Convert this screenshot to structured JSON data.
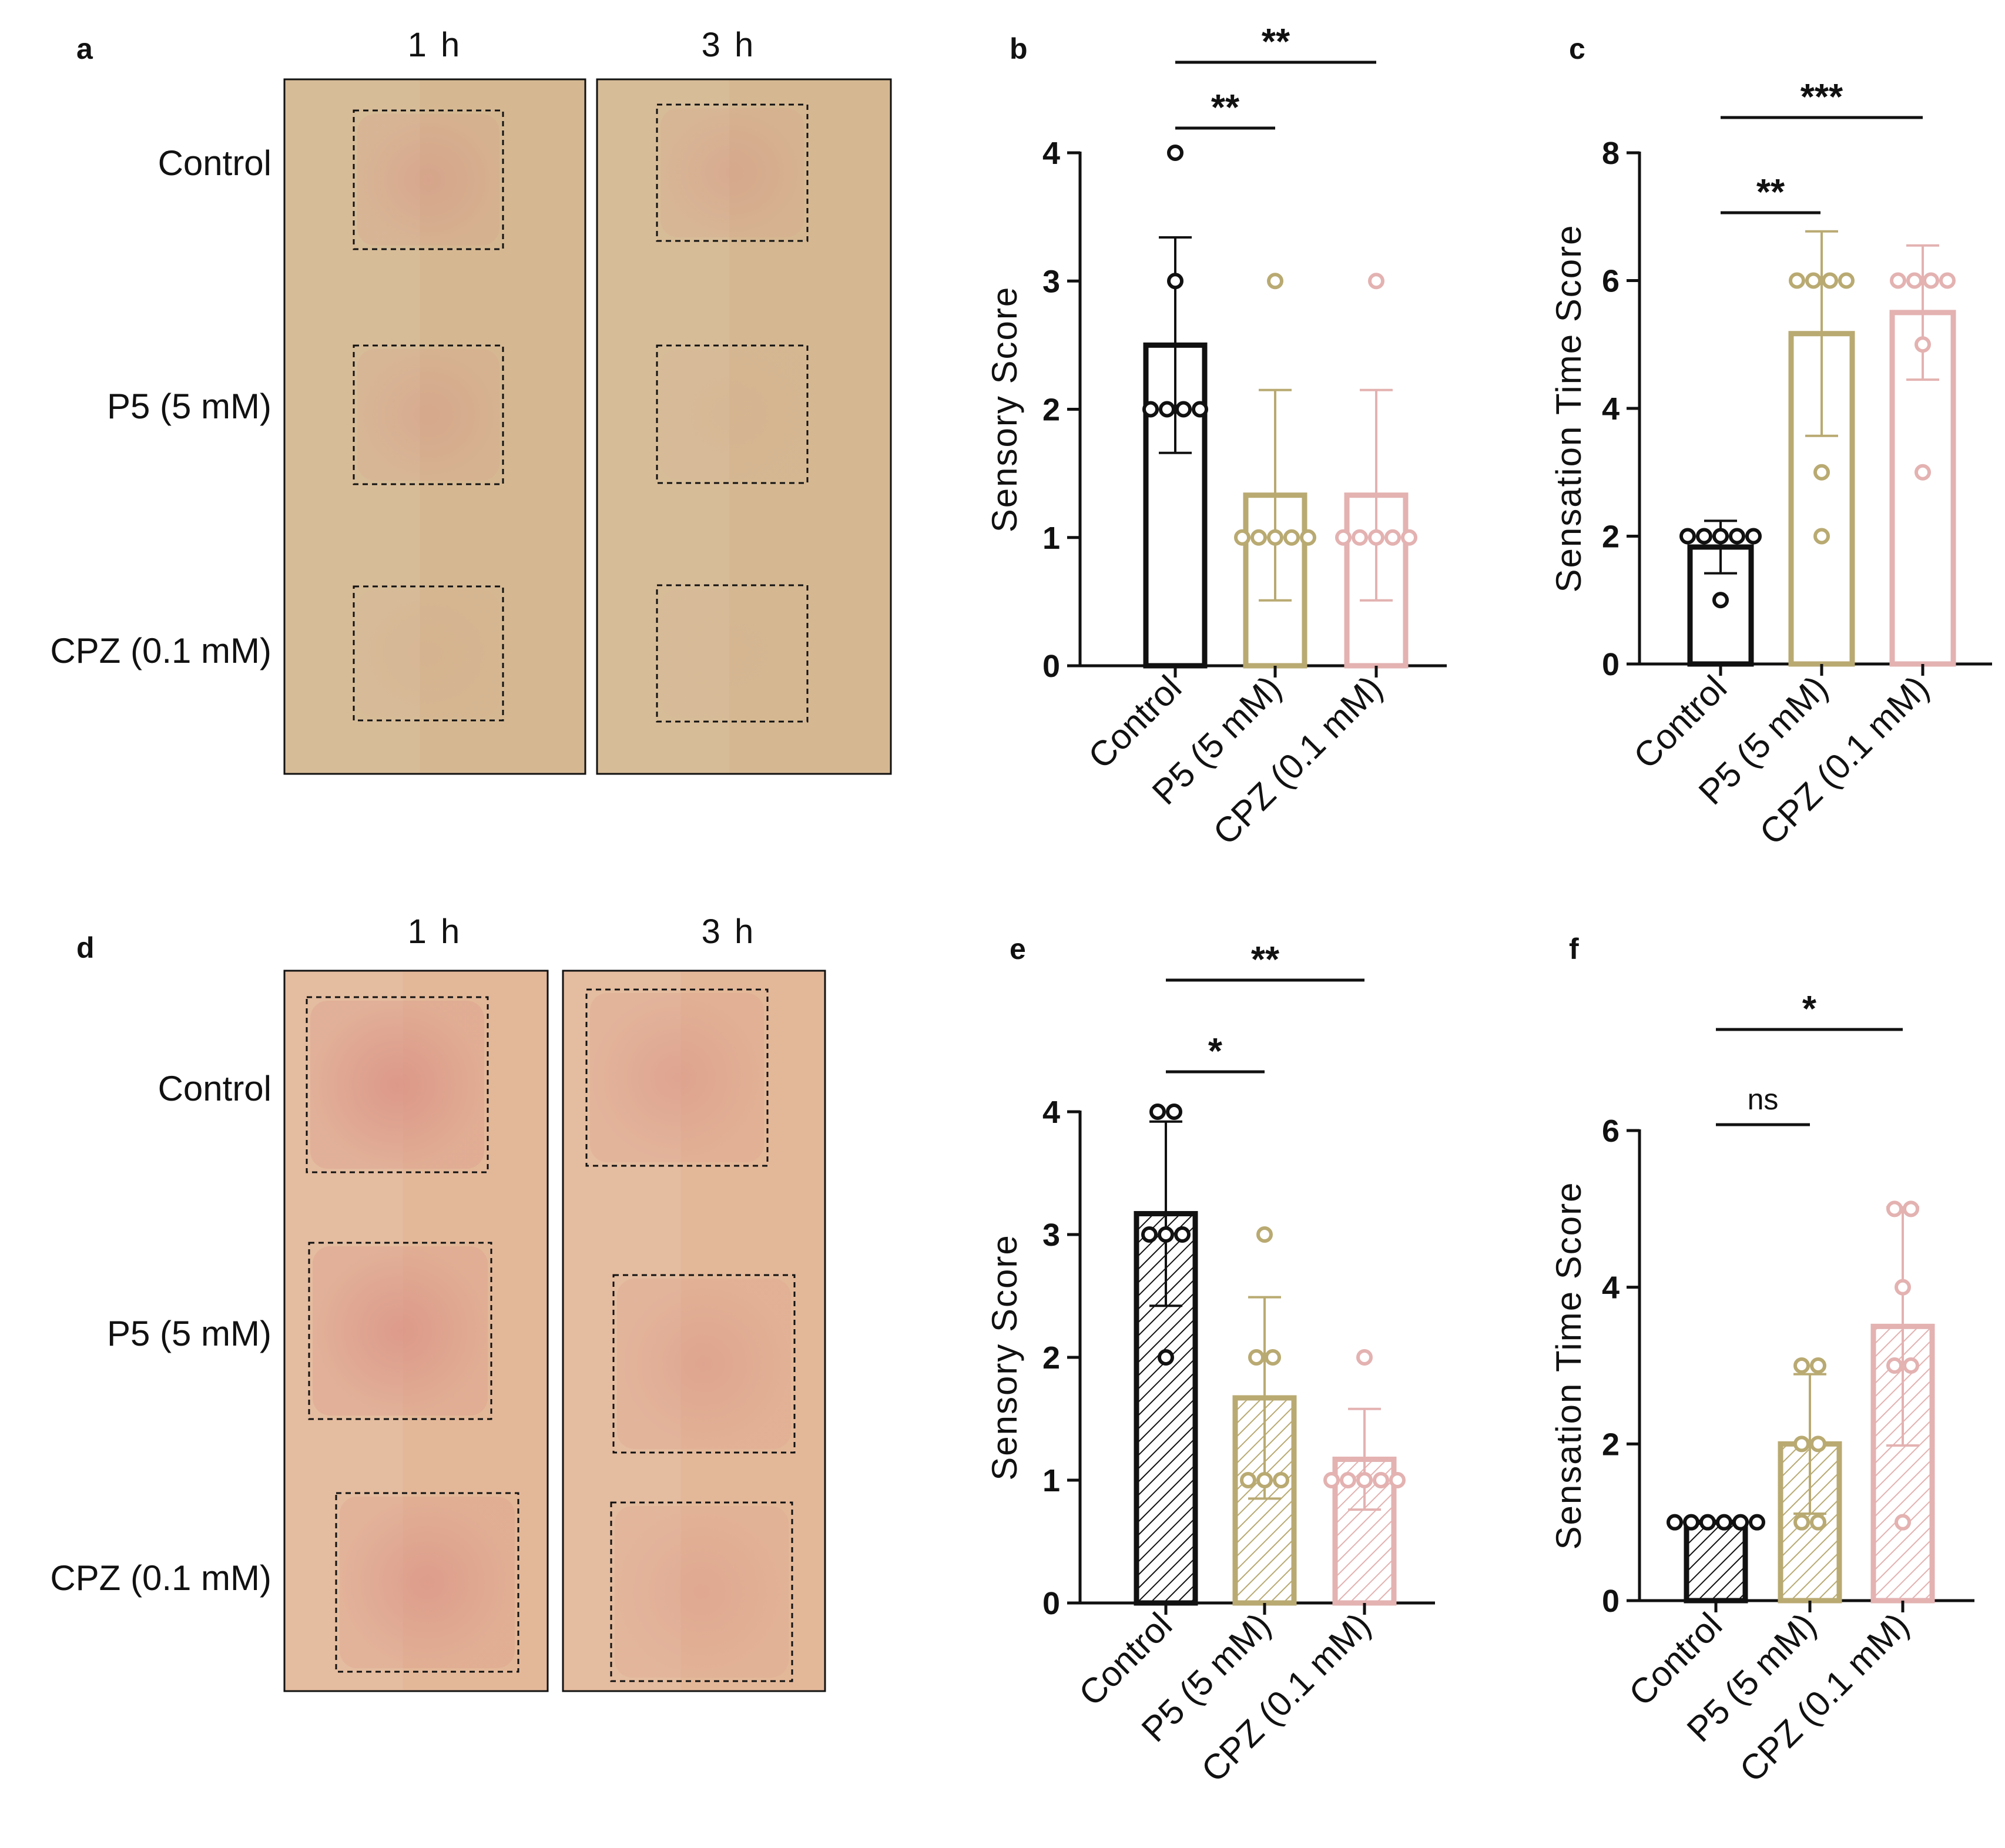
{
  "colors": {
    "control": "#111111",
    "p5": "#b9aa72",
    "cpz": "#e3b2b1",
    "skin_a": "#d5b892",
    "skin_d": "#e3b899",
    "redness": "#d98880"
  },
  "photo_panels": [
    {
      "panel_label": "a",
      "time_labels": [
        "1 h",
        "3 h"
      ],
      "row_labels": [
        "Control",
        "P5 (5 mM)",
        "CPZ (0.1 mM)"
      ],
      "redness_1h": [
        0.55,
        0.45,
        0.15
      ],
      "redness_3h": [
        0.45,
        0.1,
        0.05
      ]
    },
    {
      "panel_label": "d",
      "time_labels": [
        "1 h",
        "3 h"
      ],
      "row_labels": [
        "Control",
        "P5 (5 mM)",
        "CPZ (0.1 mM)"
      ],
      "redness_1h": [
        0.9,
        0.85,
        0.75
      ],
      "redness_3h": [
        0.6,
        0.55,
        0.45
      ]
    }
  ],
  "chart_data": [
    {
      "panel_label": "b",
      "type": "bar",
      "pattern": "solid",
      "ylabel": "Sensory Score",
      "ylim": [
        0,
        4
      ],
      "yticks": [
        "0",
        "1",
        "2",
        "3",
        "4"
      ],
      "categories": [
        "Control",
        "P5 (5 mM)",
        "CPZ (0.1 mM)"
      ],
      "values": [
        2.5,
        1.33,
        1.33
      ],
      "errors": [
        0.84,
        0.82,
        0.82
      ],
      "points": [
        [
          2,
          2,
          2,
          2,
          3,
          4
        ],
        [
          1,
          1,
          1,
          1,
          1,
          3
        ],
        [
          1,
          1,
          1,
          1,
          1,
          3
        ]
      ],
      "significance": [
        {
          "from": 0,
          "to": 1,
          "label": "**"
        },
        {
          "from": 0,
          "to": 2,
          "label": "**"
        }
      ]
    },
    {
      "panel_label": "c",
      "type": "bar",
      "pattern": "solid",
      "ylabel": "Sensation Time Score",
      "ylim": [
        0,
        8
      ],
      "yticks": [
        "0",
        "2",
        "4",
        "6",
        "8"
      ],
      "categories": [
        "Control",
        "P5 (5 mM)",
        "CPZ (0.1 mM)"
      ],
      "values": [
        1.83,
        5.17,
        5.5
      ],
      "errors": [
        0.41,
        1.6,
        1.05
      ],
      "points": [
        [
          1,
          2,
          2,
          2,
          2,
          2
        ],
        [
          2,
          3,
          6,
          6,
          6,
          6
        ],
        [
          3,
          5,
          6,
          6,
          6,
          6
        ]
      ],
      "significance": [
        {
          "from": 0,
          "to": 1,
          "label": "**"
        },
        {
          "from": 0,
          "to": 2,
          "label": "***"
        }
      ]
    },
    {
      "panel_label": "e",
      "type": "bar",
      "pattern": "hatched",
      "ylabel": "Sensory Score",
      "ylim": [
        0,
        4
      ],
      "yticks": [
        "0",
        "1",
        "2",
        "3",
        "4"
      ],
      "categories": [
        "Control",
        "P5 (5 mM)",
        "CPZ (0.1 mM)"
      ],
      "values": [
        3.17,
        1.67,
        1.17
      ],
      "errors": [
        0.75,
        0.82,
        0.41
      ],
      "points": [
        [
          2,
          3,
          3,
          3,
          4,
          4
        ],
        [
          1,
          1,
          1,
          2,
          2,
          3
        ],
        [
          1,
          1,
          1,
          1,
          1,
          2
        ]
      ],
      "significance": [
        {
          "from": 0,
          "to": 1,
          "label": "*"
        },
        {
          "from": 0,
          "to": 2,
          "label": "**"
        }
      ]
    },
    {
      "panel_label": "f",
      "type": "bar",
      "pattern": "hatched",
      "ylabel": "Sensation Time Score",
      "ylim": [
        0,
        6
      ],
      "yticks": [
        "0",
        "2",
        "4",
        "6"
      ],
      "categories": [
        "Control",
        "P5 (5 mM)",
        "CPZ (0.1 mM)"
      ],
      "values": [
        1,
        2,
        3.5
      ],
      "errors": [
        0,
        0.89,
        1.52
      ],
      "points": [
        [
          1,
          1,
          1,
          1,
          1,
          1
        ],
        [
          1,
          1,
          2,
          2,
          3,
          3
        ],
        [
          1,
          3,
          3,
          4,
          5,
          5
        ]
      ],
      "significance": [
        {
          "from": 0,
          "to": 1,
          "label": "ns"
        },
        {
          "from": 0,
          "to": 2,
          "label": "*"
        }
      ]
    }
  ]
}
